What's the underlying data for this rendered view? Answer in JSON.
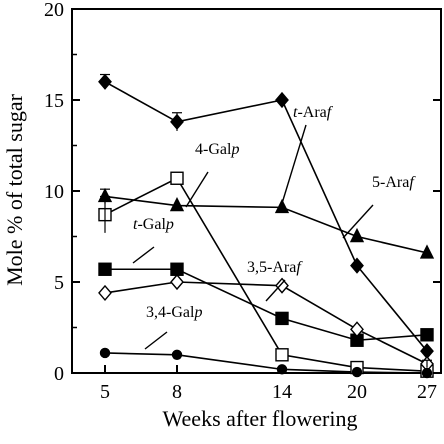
{
  "chart_data": {
    "type": "line",
    "xlabel": "Weeks after flowering",
    "ylabel": "Mole % of total sugar",
    "x": [
      5,
      8,
      14,
      20,
      27
    ],
    "x_tick_labels": [
      "5",
      "8",
      "14",
      "20",
      "27"
    ],
    "y_ticks": [
      0,
      5,
      10,
      15,
      20
    ],
    "ylim": [
      0,
      20
    ],
    "grid": false,
    "legend": "none",
    "series": [
      {
        "name": "t-Araf",
        "marker": "diamond",
        "filled": true,
        "values": [
          16.0,
          13.8,
          15.0,
          5.9,
          1.2
        ]
      },
      {
        "name": "4-Galp",
        "marker": "square",
        "filled": false,
        "values": [
          8.7,
          10.7,
          1.0,
          0.3,
          0.1
        ]
      },
      {
        "name": "5-Araf",
        "marker": "triangle",
        "filled": true,
        "values": [
          9.7,
          9.2,
          9.1,
          7.5,
          6.6
        ]
      },
      {
        "name": "t-Galp",
        "marker": "square",
        "filled": true,
        "values": [
          5.7,
          5.7,
          3.0,
          1.8,
          2.1
        ]
      },
      {
        "name": "3,5-Araf",
        "marker": "diamond",
        "filled": false,
        "values": [
          4.4,
          5.0,
          4.8,
          2.4,
          0.5
        ]
      },
      {
        "name": "3,4-Galp",
        "marker": "circle",
        "filled": true,
        "values": [
          1.1,
          1.0,
          0.2,
          0.05,
          0.0
        ]
      }
    ]
  }
}
